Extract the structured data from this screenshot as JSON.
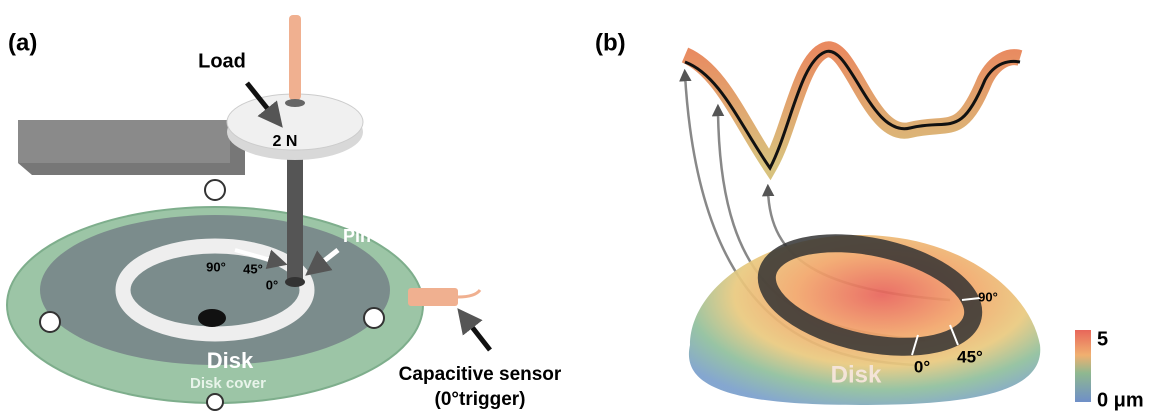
{
  "panel_a": {
    "label": "(a)",
    "load": "Load",
    "weight": "2 N",
    "pin": "Pin",
    "angles": [
      "90°",
      "45°",
      "0°"
    ],
    "disk": "Disk",
    "disk_cover": "Disk cover",
    "sensor": [
      "Capacitive sensor",
      "(0°trigger)"
    ]
  },
  "panel_b": {
    "label": "(b)",
    "angles": [
      "90°",
      "0°",
      "45°"
    ],
    "disk": "Disk",
    "colorbar": {
      "max": "5",
      "min": "0 μm"
    }
  }
}
